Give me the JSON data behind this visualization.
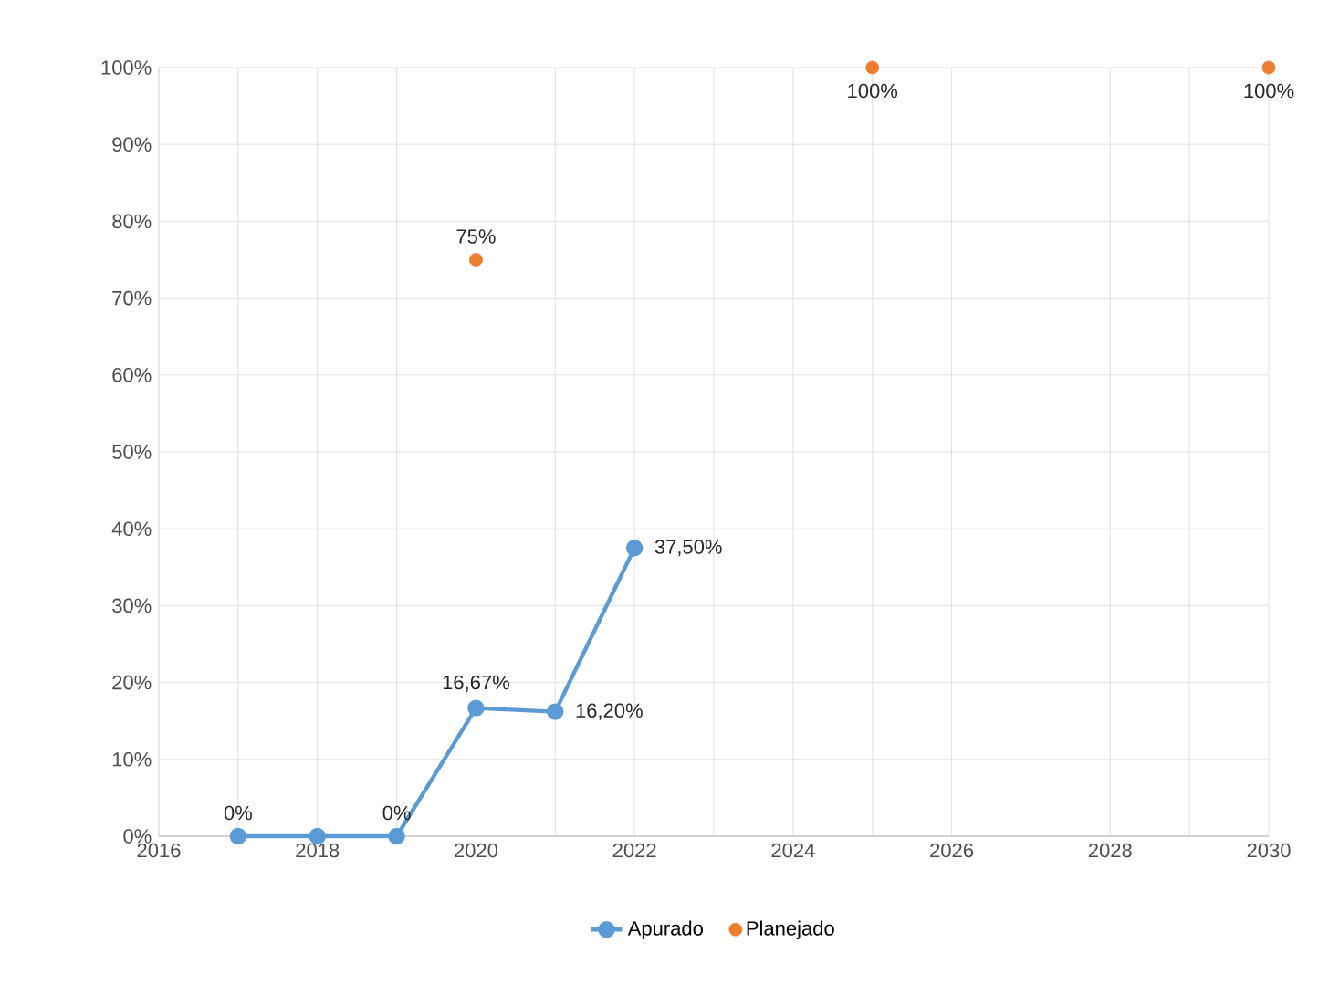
{
  "chart_data": {
    "type": "line",
    "xlim": [
      2016,
      2030
    ],
    "ylim": [
      0,
      100
    ],
    "xticks": [
      2016,
      {
        "value": 2017,
        "label": null
      },
      2018,
      {
        "value": 2019,
        "label": null
      },
      2020,
      {
        "value": 2021,
        "label": null
      },
      2022,
      {
        "value": 2023,
        "label": null
      },
      2024,
      {
        "value": 2025,
        "label": null
      },
      2026,
      {
        "value": 2027,
        "label": null
      },
      2028,
      {
        "value": 2029,
        "label": null
      },
      2030
    ],
    "yticks": [
      {
        "value": 0,
        "label": "0%"
      },
      {
        "value": 10,
        "label": "10%"
      },
      {
        "value": 20,
        "label": "20%"
      },
      {
        "value": 30,
        "label": "30%"
      },
      {
        "value": 40,
        "label": "40%"
      },
      {
        "value": 50,
        "label": "50%"
      },
      {
        "value": 60,
        "label": "60%"
      },
      {
        "value": 70,
        "label": "70%"
      },
      {
        "value": 80,
        "label": "80%"
      },
      {
        "value": 90,
        "label": "90%"
      },
      {
        "value": 100,
        "label": "100%"
      }
    ],
    "grid": true,
    "legend": "bottom",
    "marker": "circle",
    "series": [
      {
        "name": "Apurado",
        "color": "#5b9bd5",
        "x": [
          2017,
          2018,
          2019,
          2020,
          2021,
          2022
        ],
        "values": [
          0,
          0,
          0,
          16.67,
          16.2,
          37.5
        ],
        "value_labels": [
          "0%",
          null,
          "0%",
          "16,67%",
          "16,20%",
          "37,50%"
        ]
      },
      {
        "name": "Planejado",
        "type": "scatter",
        "color": "#ed7d31",
        "x": [
          2020,
          2025,
          2030
        ],
        "values": [
          75,
          100,
          100
        ],
        "value_labels": [
          "75%",
          "100%",
          "100%"
        ]
      }
    ]
  }
}
